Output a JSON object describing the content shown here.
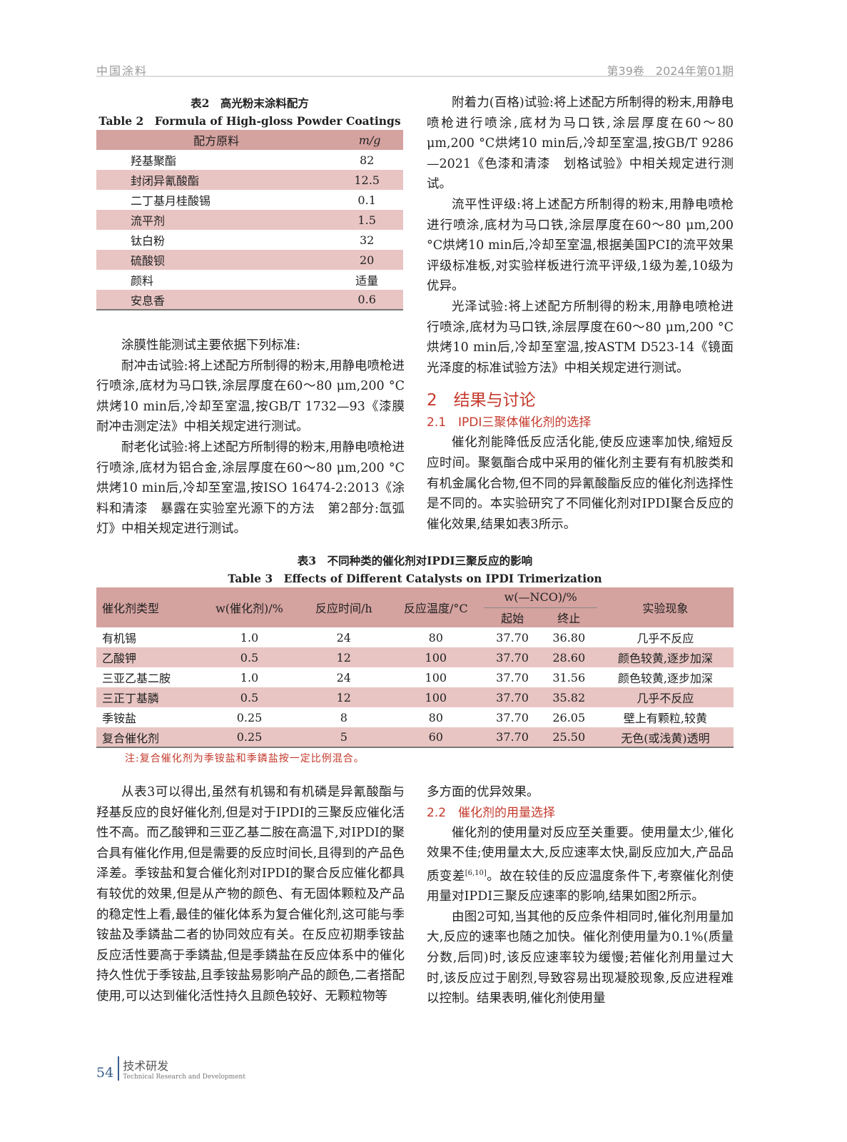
{
  "header": {
    "journal": "中国涂料",
    "issue": "第39卷　2024年第01期"
  },
  "table2": {
    "title_cn": "表2　高光粉末涂料配方",
    "title_en": "Table 2　Formula of High-gloss Powder Coatings",
    "headers": [
      "配方原料",
      "m/g"
    ],
    "rows": [
      [
        "羟基聚酯",
        "82"
      ],
      [
        "封闭异氰酸酯",
        "12.5"
      ],
      [
        "二丁基月桂酸锡",
        "0.1"
      ],
      [
        "流平剂",
        "1.5"
      ],
      [
        "钛白粉",
        "32"
      ],
      [
        "硫酸钡",
        "20"
      ],
      [
        "颜料",
        "适量"
      ],
      [
        "安息香",
        "0.6"
      ]
    ]
  },
  "left_top": [
    "涂膜性能测试主要依据下列标准:",
    "耐冲击试验:将上述配方所制得的粉末,用静电喷枪进行喷涂,底材为马口铁,涂层厚度在60～80 μm,200 °C烘烤10 min后,冷却至室温,按GB/T 1732—93《漆膜耐冲击测定法》中相关规定进行测试。",
    "耐老化试验:将上述配方所制得的粉末,用静电喷枪进行喷涂,底材为铝合金,涂层厚度在60～80 μm,200 °C烘烤10 min后,冷却至室温,按ISO 16474-2:2013《涂料和清漆　暴露在实验室光源下的方法　第2部分:氙弧灯》中相关规定进行测试。"
  ],
  "right_top": [
    "附着力(百格)试验:将上述配方所制得的粉末,用静电喷枪进行喷涂,底材为马口铁,涂层厚度在60～80 μm,200 °C烘烤10 min后,冷却至室温,按GB/T 9286—2021《色漆和清漆　划格试验》中相关规定进行测试。",
    "流平性评级:将上述配方所制得的粉末,用静电喷枪进行喷涂,底材为马口铁,涂层厚度在60～80 μm,200 °C烘烤10 min后,冷却至室温,根据美国PCI的流平效果评级标准板,对实验样板进行流平评级,1级为差,10级为优异。",
    "光泽试验:将上述配方所制得的粉末,用静电喷枪进行喷涂,底材为马口铁,涂层厚度在60～80 μm,200 °C烘烤10 min后,冷却至室温,按ASTM D523-14《镜面光泽度的标准试验方法》中相关规定进行测试。"
  ],
  "section2": "2　结果与讨论",
  "section21": "2.1　IPDI三聚体催化剂的选择",
  "section21_text": "催化剂能降低反应活化能,使反应速率加快,缩短反应时间。聚氨酯合成中采用的催化剂主要有有机胺类和有机金属化合物,但不同的异氰酸酯反应的催化剂选择性是不同的。本实验研究了不同催化剂对IPDI聚合反应的催化效果,结果如表3所示。",
  "table3": {
    "title_cn": "表3　不同种类的催化剂对IPDI三聚反应的影响",
    "title_en": "Table 3　Effects of Different Catalysts on IPDI Trimerization",
    "headers": [
      "催化剂类型",
      "w(催化剂)/%",
      "反应时间/h",
      "反应温度/°C",
      "w(—NCO)/%",
      "起始",
      "终止",
      "实验现象"
    ],
    "rows": [
      [
        "有机锡",
        "1.0",
        "24",
        "80",
        "37.70",
        "36.80",
        "几乎不反应"
      ],
      [
        "乙酸钾",
        "0.5",
        "12",
        "100",
        "37.70",
        "28.60",
        "颜色较黄,逐步加深"
      ],
      [
        "三亚乙基二胺",
        "1.0",
        "24",
        "100",
        "37.70",
        "31.56",
        "颜色较黄,逐步加深"
      ],
      [
        "三正丁基膦",
        "0.5",
        "12",
        "100",
        "37.70",
        "35.82",
        "几乎不反应"
      ],
      [
        "季铵盐",
        "0.25",
        "8",
        "80",
        "37.70",
        "26.05",
        "壁上有颗粒,较黄"
      ],
      [
        "复合催化剂",
        "0.25",
        "5",
        "60",
        "37.70",
        "25.50",
        "无色(或浅黄)透明"
      ]
    ],
    "note": "注:复合催化剂为季铵盐和季鏻盐按一定比例混合。"
  },
  "left_bottom": "从表3可以得出,虽然有机锡和有机磷是异氰酸酯与羟基反应的良好催化剂,但是对于IPDI的三聚反应催化活性不高。而乙酸钾和三亚乙基二胺在高温下,对IPDI的聚合具有催化作用,但是需要的反应时间长,且得到的产品色泽差。季铵盐和复合催化剂对IPDI的聚合反应催化都具有较优的效果,但是从产物的颜色、有无固体颗粒及产品的稳定性上看,最佳的催化体系为复合催化剂,这可能与季铵盐及季鏻盐二者的协同效应有关。在反应初期季铵盐反应活性要高于季鏻盐,但是季鏻盐在反应体系中的催化持久性优于季铵盐,且季铵盐易影响产品的颜色,二者搭配使用,可以达到催化活性持久且颜色较好、无颗粒物等",
  "right_bottom_start": "多方面的优异效果。",
  "section22": "2.2　催化剂的用量选择",
  "section22_text_a": "催化剂的使用量对反应至关重要。使用量太少,催化效果不佳;使用量太大,反应速率太快,副反应加大,产品品质变差",
  "section22_ref": "[6,10]",
  "section22_text_b": "。故在较佳的反应温度条件下,考察催化剂使用量对IPDI三聚反应速率的影响,结果如图2所示。",
  "section22_text2": "由图2可知,当其他的反应条件相同时,催化剂用量加大,反应的速率也随之加快。催化剂使用量为0.1%(质量分数,后同)时,该反应速率较为缓慢;若催化剂用量过大时,该反应过于剧烈,导致容易出现凝胶现象,反应进程难以控制。结果表明,催化剂使用量",
  "footer": {
    "page": "54",
    "section_cn": "技术研发",
    "section_en": "Technical Research and Development"
  }
}
